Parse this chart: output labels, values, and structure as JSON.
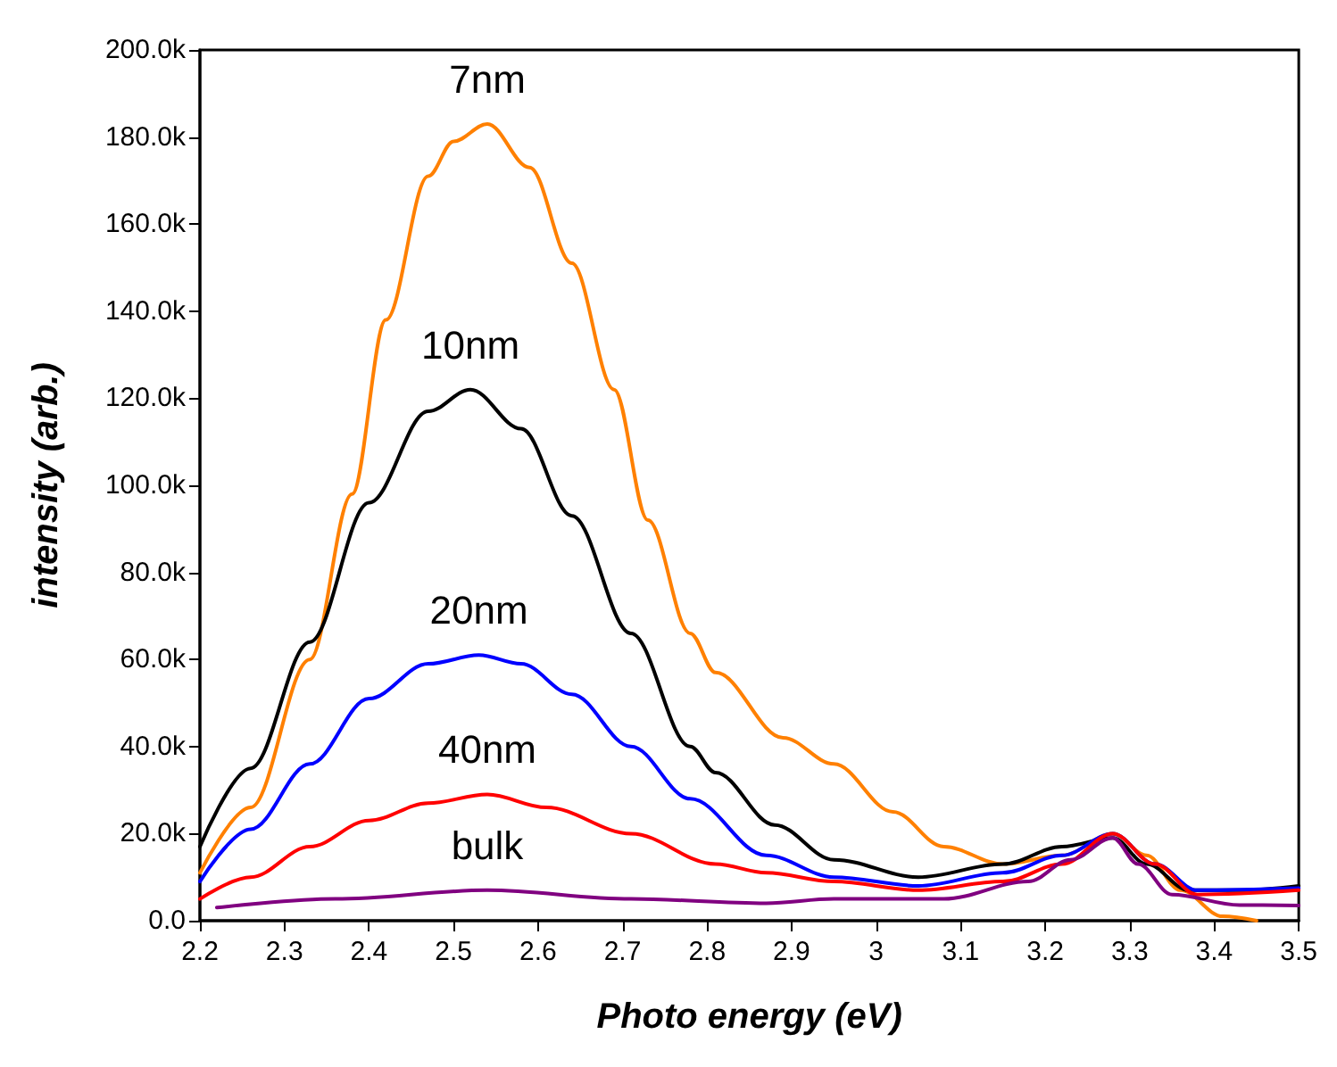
{
  "chart_data": {
    "type": "line",
    "xlabel": "Photo energy (eV)",
    "ylabel": "intensity (arb.)",
    "grid": false,
    "legend": false,
    "line_style": "solid",
    "xlim": [
      2.2,
      3.5
    ],
    "xticks": [
      2.2,
      2.3,
      2.4,
      2.5,
      2.6,
      2.7,
      2.8,
      2.9,
      3.0,
      3.1,
      3.2,
      3.3,
      3.4,
      3.5
    ],
    "ylim": [
      0,
      200000
    ],
    "yticks": [
      {
        "value": 0,
        "label": "0.0"
      },
      {
        "value": 20000,
        "label": "20.0k"
      },
      {
        "value": 40000,
        "label": "40.0k"
      },
      {
        "value": 60000,
        "label": "60.0k"
      },
      {
        "value": 80000,
        "label": "80.0k"
      },
      {
        "value": 100000,
        "label": "100.0k"
      },
      {
        "value": 120000,
        "label": "120.0k"
      },
      {
        "value": 140000,
        "label": "140.0k"
      },
      {
        "value": 160000,
        "label": "160.0k"
      },
      {
        "value": 180000,
        "label": "180.0k"
      },
      {
        "value": 200000,
        "label": "200.0k"
      }
    ],
    "series": [
      {
        "name": "7nm",
        "color": "#ff8000",
        "x": [
          2.2,
          2.26,
          2.33,
          2.38,
          2.42,
          2.47,
          2.5,
          2.54,
          2.59,
          2.64,
          2.69,
          2.73,
          2.78,
          2.81,
          2.89,
          2.95,
          3.02,
          3.08,
          3.15,
          3.22,
          3.28,
          3.32,
          3.36,
          3.41,
          3.45
        ],
        "values": [
          11000,
          26000,
          60000,
          98000,
          138000,
          171000,
          179000,
          183000,
          173000,
          151000,
          122000,
          92000,
          66000,
          57000,
          42000,
          36000,
          25000,
          17000,
          13000,
          15000,
          20000,
          15000,
          7000,
          1000,
          0
        ]
      },
      {
        "name": "10nm",
        "color": "#000000",
        "x": [
          2.2,
          2.26,
          2.33,
          2.4,
          2.47,
          2.52,
          2.58,
          2.64,
          2.71,
          2.78,
          2.81,
          2.88,
          2.95,
          3.05,
          3.15,
          3.22,
          3.28,
          3.32,
          3.37,
          3.43,
          3.5
        ],
        "values": [
          17000,
          35000,
          64000,
          96000,
          117000,
          122000,
          113000,
          93000,
          66000,
          40000,
          34000,
          22000,
          14000,
          10000,
          13000,
          17000,
          19000,
          13000,
          7000,
          7000,
          8000
        ]
      },
      {
        "name": "20nm",
        "color": "#0000ff",
        "x": [
          2.2,
          2.26,
          2.33,
          2.4,
          2.47,
          2.53,
          2.58,
          2.64,
          2.71,
          2.78,
          2.87,
          2.95,
          3.05,
          3.15,
          3.22,
          3.28,
          3.33,
          3.38,
          3.5
        ],
        "values": [
          9000,
          21000,
          36000,
          51000,
          59000,
          61000,
          59000,
          52000,
          40000,
          28000,
          15000,
          10000,
          8000,
          11000,
          15000,
          20000,
          13000,
          7000,
          7500
        ]
      },
      {
        "name": "40nm",
        "color": "#ff0000",
        "x": [
          2.2,
          2.26,
          2.33,
          2.4,
          2.47,
          2.54,
          2.61,
          2.71,
          2.81,
          2.87,
          2.95,
          3.05,
          3.15,
          3.22,
          3.28,
          3.33,
          3.38,
          3.5
        ],
        "values": [
          5000,
          10000,
          17000,
          23000,
          27000,
          29000,
          26000,
          20000,
          13000,
          11000,
          9000,
          7000,
          9000,
          13000,
          20000,
          13000,
          6000,
          7000
        ]
      },
      {
        "name": "bulk",
        "color": "#800080",
        "x": [
          2.22,
          2.36,
          2.54,
          2.71,
          2.87,
          2.95,
          3.08,
          3.18,
          3.23,
          3.28,
          3.31,
          3.35,
          3.43,
          3.5
        ],
        "values": [
          3000,
          5000,
          7000,
          5000,
          4000,
          5000,
          5000,
          9000,
          14000,
          19000,
          13000,
          6000,
          3600,
          3500
        ]
      }
    ]
  }
}
